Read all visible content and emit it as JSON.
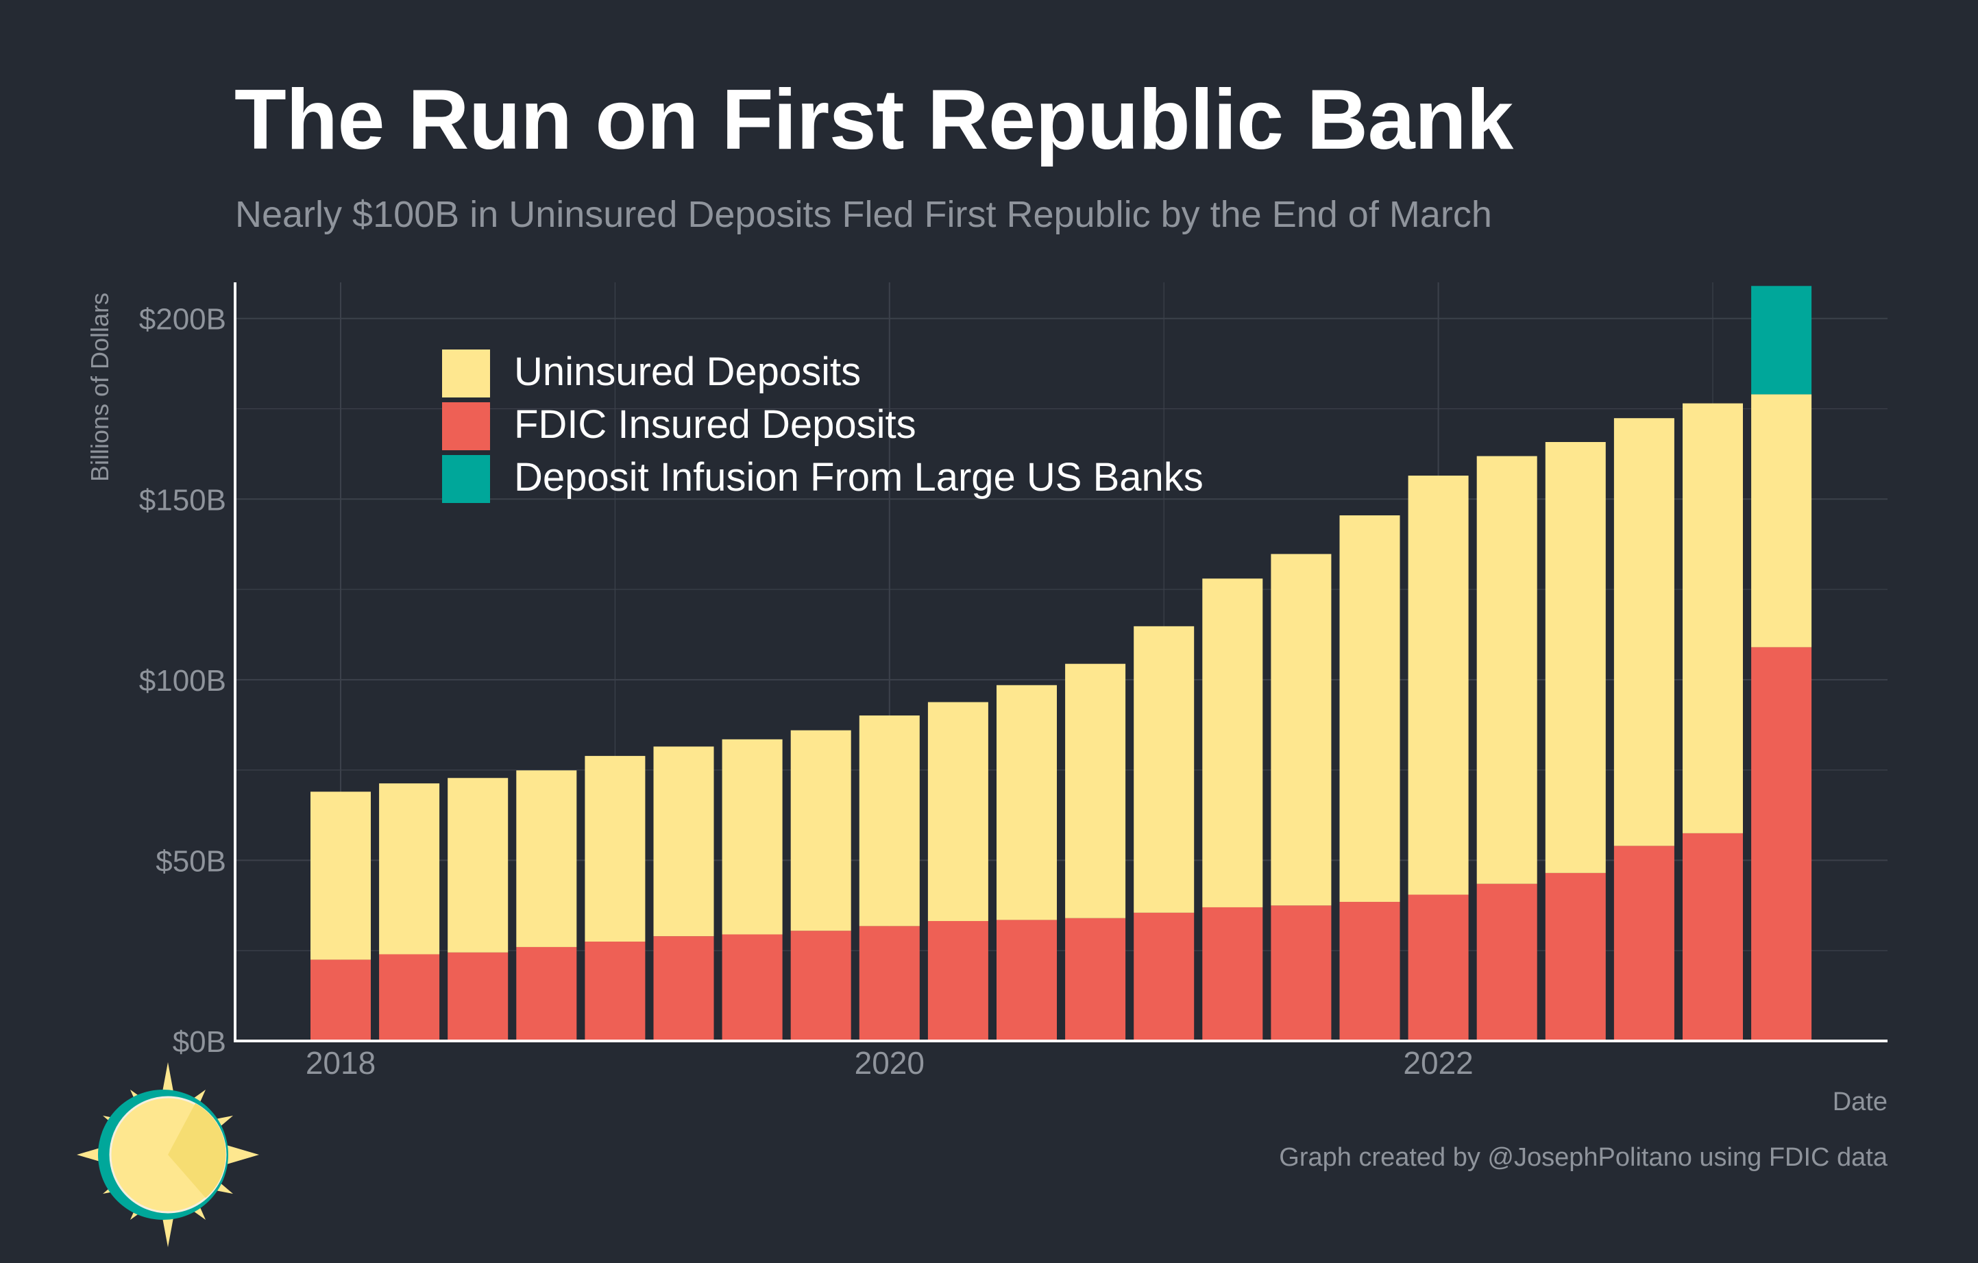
{
  "chart_data": {
    "type": "bar",
    "stacked": true,
    "title": "The Run on First Republic Bank",
    "subtitle": "Nearly $100B in Uninsured Deposits Fled First Republic by the End of March",
    "xlabel": "Date",
    "ylabel": "Billions of Dollars",
    "ylim": [
      0,
      210
    ],
    "y_ticks": [
      0,
      50,
      100,
      150,
      200
    ],
    "y_tick_labels": [
      "$0B",
      "$50B",
      "$100B",
      "$150B",
      "$200B"
    ],
    "x_tick_labels": [
      "2018",
      "2020",
      "2022"
    ],
    "x_tick_category_index": [
      0,
      8,
      16
    ],
    "grid": true,
    "legend_position": "top-left",
    "categories": [
      "2017Q4",
      "2018Q1",
      "2018Q2",
      "2018Q3",
      "2018Q4",
      "2019Q1",
      "2019Q2",
      "2019Q3",
      "2019Q4",
      "2020Q1",
      "2020Q2",
      "2020Q3",
      "2020Q4",
      "2021Q1",
      "2021Q2",
      "2021Q3",
      "2021Q4",
      "2022Q1",
      "2022Q2",
      "2022Q3",
      "2022Q4",
      "2023Q1"
    ],
    "series": [
      {
        "name": "FDIC Insured Deposits",
        "color": "#ee6055",
        "values": [
          22.5,
          24,
          24.5,
          26,
          27.5,
          29,
          29.5,
          30.5,
          31.8,
          33.2,
          33.5,
          34,
          35.5,
          37,
          37.5,
          38.5,
          40.5,
          43.5,
          46.5,
          54,
          57.5,
          109
        ]
      },
      {
        "name": "Uninsured Deposits",
        "color": "#fee78f",
        "values": [
          46.5,
          47.3,
          48.3,
          48.9,
          51.4,
          52.5,
          54,
          55.5,
          58.3,
          60.6,
          65,
          70.4,
          79.3,
          91,
          97.3,
          107,
          116,
          118.4,
          119.3,
          118.4,
          119,
          70
        ]
      },
      {
        "name": "Deposit Infusion From Large US Banks",
        "color": "#00a79a",
        "values": [
          0,
          0,
          0,
          0,
          0,
          0,
          0,
          0,
          0,
          0,
          0,
          0,
          0,
          0,
          0,
          0,
          0,
          0,
          0,
          0,
          0,
          30
        ]
      }
    ],
    "legend_order": [
      "Uninsured Deposits",
      "FDIC Insured Deposits",
      "Deposit Infusion From Large US Banks"
    ]
  },
  "credit": "Graph created by @JosephPolitano using FDIC data",
  "colors": {
    "background": "#252a33",
    "grid": "#3c414b",
    "axis_line": "#ffffff",
    "tick_text": "#8f949c",
    "legend_text": "#ffffff",
    "logo_sun": "#fee78f",
    "logo_ring": "#00a79a"
  },
  "logo": {
    "icon": "sun-logo-icon"
  }
}
